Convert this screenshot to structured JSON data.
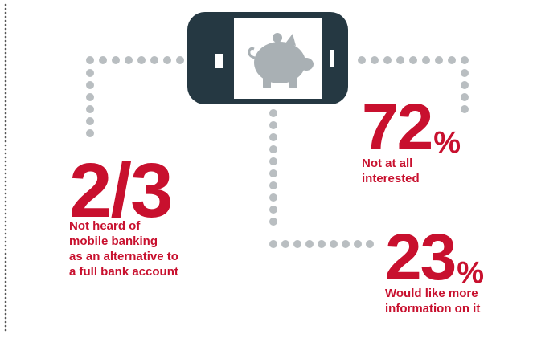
{
  "stats": {
    "unaware": {
      "value": "2/3",
      "caption_lines": [
        "Not heard of",
        "mobile banking",
        "as an alternative to",
        "a full bank account"
      ]
    },
    "not_interested": {
      "value": "72",
      "unit": "%",
      "caption_lines": [
        "Not at all",
        "interested"
      ]
    },
    "want_info": {
      "value": "23",
      "unit": "%",
      "caption_lines": [
        "Would like more",
        "information on it"
      ]
    }
  },
  "colors": {
    "accent": "#c8102e",
    "dot": "#b9bec1",
    "phone": "#253842",
    "phone_screen": "#ffffff",
    "piggy": "#a9b0b4"
  },
  "icons": [
    "phone-icon",
    "piggy-bank-icon"
  ]
}
